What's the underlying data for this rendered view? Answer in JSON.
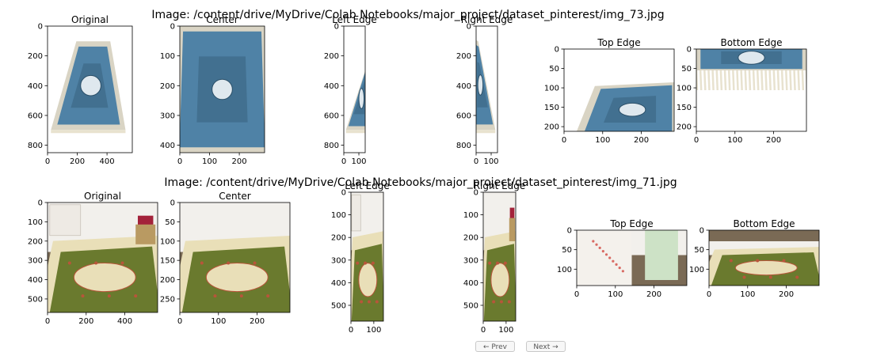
{
  "colors": {
    "rug1_blue": "#4f82a6",
    "rug1_dark": "#2b4f68",
    "rug1_border": "#d9d4c4",
    "fringe": "#e8e2cf",
    "rug2_green": "#6a7a2e",
    "rug2_cream": "#e9dfb8",
    "rug2_red": "#b8553a",
    "floor": "#7a6a55",
    "wall": "#f2f0ec"
  },
  "chart_data": [
    {
      "type": "image-grid",
      "title": "Image: /content/drive/MyDrive/Colab Notebooks/major_project/dataset_pinterest/img_73.jpg",
      "panels": [
        {
          "title": "Original",
          "image": "rug-blue-full",
          "xlim": [
            0,
            570
          ],
          "ylim": [
            850,
            0
          ],
          "xticks": [
            0,
            200,
            400
          ],
          "yticks": [
            0,
            200,
            400,
            600,
            800
          ]
        },
        {
          "title": "Center",
          "image": "rug-blue-center",
          "xlim": [
            0,
            285
          ],
          "ylim": [
            425,
            0
          ],
          "xticks": [
            0,
            100,
            200
          ],
          "yticks": [
            0,
            100,
            200,
            300,
            400
          ]
        },
        {
          "title": "Left Edge",
          "image": "rug-blue-left",
          "xlim": [
            0,
            142
          ],
          "ylim": [
            850,
            0
          ],
          "xticks": [
            0,
            100
          ],
          "yticks": [
            0,
            200,
            400,
            600,
            800
          ]
        },
        {
          "title": "Right Edge",
          "image": "rug-blue-right",
          "xlim": [
            0,
            142
          ],
          "ylim": [
            850,
            0
          ],
          "xticks": [
            0,
            100
          ],
          "yticks": [
            0,
            200,
            400,
            600,
            800
          ]
        },
        {
          "title": "Top Edge",
          "image": "rug-blue-top",
          "xlim": [
            0,
            285
          ],
          "ylim": [
            212,
            0
          ],
          "xticks": [
            0,
            100,
            200
          ],
          "yticks": [
            0,
            50,
            100,
            150,
            200
          ]
        },
        {
          "title": "Bottom Edge",
          "image": "rug-blue-bottom",
          "xlim": [
            0,
            285
          ],
          "ylim": [
            212,
            0
          ],
          "xticks": [
            0,
            100,
            200
          ],
          "yticks": [
            0,
            50,
            100,
            150,
            200
          ]
        }
      ]
    },
    {
      "type": "image-grid",
      "title": "Image: /content/drive/MyDrive/Colab Notebooks/major_project/dataset_pinterest/img_71.jpg",
      "panels": [
        {
          "title": "Original",
          "image": "rug-green-full",
          "xlim": [
            0,
            570
          ],
          "ylim": [
            570,
            0
          ],
          "xticks": [
            0,
            200,
            400
          ],
          "yticks": [
            0,
            100,
            200,
            300,
            400,
            500
          ]
        },
        {
          "title": "Center",
          "image": "rug-green-center",
          "xlim": [
            0,
            285
          ],
          "ylim": [
            285,
            0
          ],
          "xticks": [
            0,
            100,
            200
          ],
          "yticks": [
            0,
            50,
            100,
            150,
            200,
            250
          ]
        },
        {
          "title": "Left Edge",
          "image": "rug-green-left",
          "xlim": [
            0,
            142
          ],
          "ylim": [
            570,
            0
          ],
          "xticks": [
            0,
            100
          ],
          "yticks": [
            0,
            100,
            200,
            300,
            400,
            500
          ]
        },
        {
          "title": "Right Edge",
          "image": "rug-green-right",
          "xlim": [
            0,
            142
          ],
          "ylim": [
            570,
            0
          ],
          "xticks": [
            0,
            100
          ],
          "yticks": [
            0,
            100,
            200,
            300,
            400,
            500
          ]
        },
        {
          "title": "Top Edge",
          "image": "rug-green-top",
          "xlim": [
            0,
            285
          ],
          "ylim": [
            142,
            0
          ],
          "xticks": [
            0,
            100,
            200
          ],
          "yticks": [
            0,
            50,
            100
          ]
        },
        {
          "title": "Bottom Edge",
          "image": "rug-green-bottom",
          "xlim": [
            0,
            285
          ],
          "ylim": [
            142,
            0
          ],
          "xticks": [
            0,
            100,
            200
          ],
          "yticks": [
            0,
            50,
            100
          ]
        }
      ]
    }
  ],
  "toolbar": {
    "prev_label": "← Prev",
    "next_label": "Next →"
  }
}
